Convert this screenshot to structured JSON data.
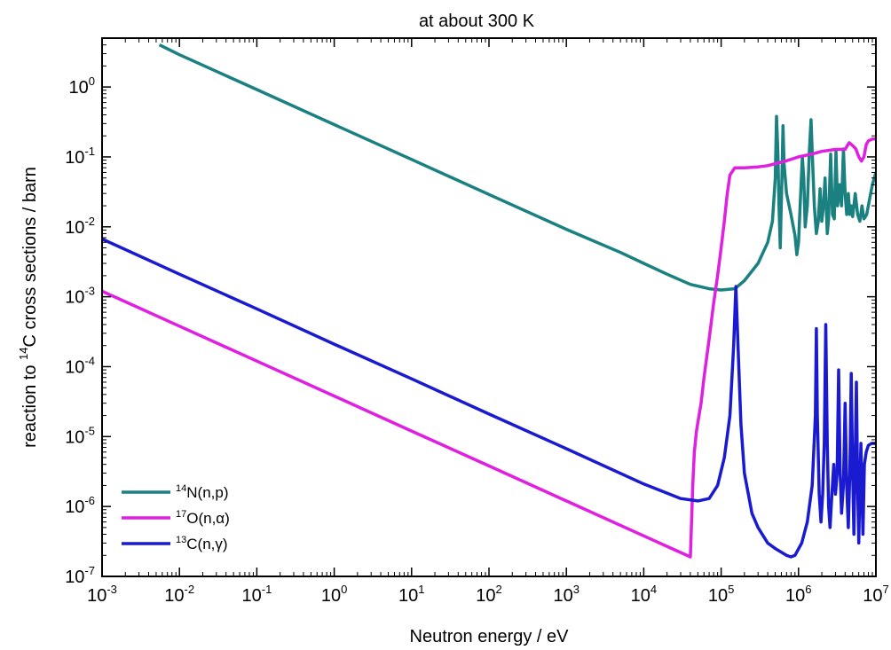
{
  "chart_data": {
    "type": "line",
    "title": "at about 300 K",
    "xlabel": "Neutron energy / eV",
    "ylabel": {
      "before": "reaction to ",
      "sup": "14",
      "after": "C cross sections / barn"
    },
    "xscale": "log",
    "yscale": "log",
    "xlim": [
      0.001,
      10000000
    ],
    "ylim": [
      1e-07,
      5
    ],
    "grid": false,
    "legend_position": "bottom-left",
    "x_ticks": [
      {
        "base": "10",
        "exp": "-3",
        "value": 0.001
      },
      {
        "base": "10",
        "exp": "-2",
        "value": 0.01
      },
      {
        "base": "10",
        "exp": "-1",
        "value": 0.1
      },
      {
        "base": "10",
        "exp": "0",
        "value": 1
      },
      {
        "base": "10",
        "exp": "1",
        "value": 10
      },
      {
        "base": "10",
        "exp": "2",
        "value": 100
      },
      {
        "base": "10",
        "exp": "3",
        "value": 1000
      },
      {
        "base": "10",
        "exp": "4",
        "value": 10000
      },
      {
        "base": "10",
        "exp": "5",
        "value": 100000
      },
      {
        "base": "10",
        "exp": "6",
        "value": 1000000
      },
      {
        "base": "10",
        "exp": "7",
        "value": 10000000
      }
    ],
    "y_ticks": [
      {
        "base": "10",
        "exp": "0",
        "value": 1
      },
      {
        "base": "10",
        "exp": "-1",
        "value": 0.1
      },
      {
        "base": "10",
        "exp": "-2",
        "value": 0.01
      },
      {
        "base": "10",
        "exp": "-3",
        "value": 0.001
      },
      {
        "base": "10",
        "exp": "-4",
        "value": 0.0001
      },
      {
        "base": "10",
        "exp": "-5",
        "value": 1e-05
      },
      {
        "base": "10",
        "exp": "-6",
        "value": 1e-06
      },
      {
        "base": "10",
        "exp": "-7",
        "value": 1e-07
      }
    ],
    "series": [
      {
        "name": "14N(n,p)",
        "label_sup": "14",
        "label_text": "N(n,p)",
        "color": "#1a8080",
        "points": [
          [
            0.0055,
            4.0
          ],
          [
            0.01,
            2.9
          ],
          [
            0.1,
            0.92
          ],
          [
            1,
            0.29
          ],
          [
            10,
            0.092
          ],
          [
            100,
            0.029
          ],
          [
            1000,
            0.0092
          ],
          [
            5000,
            0.0043
          ],
          [
            10000,
            0.003
          ],
          [
            20000,
            0.0021
          ],
          [
            40000,
            0.0015
          ],
          [
            70000,
            0.0013
          ],
          [
            100000,
            0.00125
          ],
          [
            150000,
            0.0013
          ],
          [
            200000,
            0.0017
          ],
          [
            300000,
            0.003
          ],
          [
            400000,
            0.006
          ],
          [
            460000,
            0.012
          ],
          [
            500000,
            0.05
          ],
          [
            520000,
            0.38
          ],
          [
            540000,
            0.12
          ],
          [
            560000,
            0.02
          ],
          [
            580000,
            0.005
          ],
          [
            610000,
            0.05
          ],
          [
            630000,
            0.28
          ],
          [
            650000,
            0.08
          ],
          [
            700000,
            0.03
          ],
          [
            800000,
            0.015
          ],
          [
            900000,
            0.0075
          ],
          [
            950000,
            0.004
          ],
          [
            1000000,
            0.006
          ],
          [
            1050000,
            0.02
          ],
          [
            1120000,
            0.1
          ],
          [
            1170000,
            0.05
          ],
          [
            1220000,
            0.01
          ],
          [
            1300000,
            0.02
          ],
          [
            1380000,
            0.12
          ],
          [
            1450000,
            0.34
          ],
          [
            1500000,
            0.12
          ],
          [
            1600000,
            0.02
          ],
          [
            1700000,
            0.008
          ],
          [
            1800000,
            0.012
          ],
          [
            1900000,
            0.035
          ],
          [
            2000000,
            0.012
          ],
          [
            2100000,
            0.02
          ],
          [
            2200000,
            0.05
          ],
          [
            2350000,
            0.008
          ],
          [
            2450000,
            0.013
          ],
          [
            2600000,
            0.11
          ],
          [
            2750000,
            0.015
          ],
          [
            2900000,
            0.013
          ],
          [
            3050000,
            0.12
          ],
          [
            3200000,
            0.02
          ],
          [
            3400000,
            0.04
          ],
          [
            3600000,
            0.02
          ],
          [
            3800000,
            0.13
          ],
          [
            4000000,
            0.03
          ],
          [
            4200000,
            0.015
          ],
          [
            4400000,
            0.03
          ],
          [
            4600000,
            0.015
          ],
          [
            4800000,
            0.02
          ],
          [
            5000000,
            0.014
          ],
          [
            5400000,
            0.03
          ],
          [
            5800000,
            0.015
          ],
          [
            6200000,
            0.012
          ],
          [
            6600000,
            0.02
          ],
          [
            7000000,
            0.013
          ],
          [
            7600000,
            0.015
          ],
          [
            8300000,
            0.025
          ],
          [
            9000000,
            0.04
          ],
          [
            10000000,
            0.06
          ]
        ]
      },
      {
        "name": "17O(n,α)",
        "label_sup": "17",
        "label_text": "O(n,α)",
        "color": "#e020e0",
        "points": [
          [
            0.001,
            0.0012
          ],
          [
            0.01,
            0.00038
          ],
          [
            0.1,
            0.00012
          ],
          [
            1,
            3.8e-05
          ],
          [
            10,
            1.2e-05
          ],
          [
            100,
            3.8e-06
          ],
          [
            1000,
            1.2e-06
          ],
          [
            10000,
            3.8e-07
          ],
          [
            40000,
            1.9e-07
          ],
          [
            41000,
            4e-07
          ],
          [
            43000,
            2e-06
          ],
          [
            45000,
            6e-06
          ],
          [
            48000,
            1.2e-05
          ],
          [
            50000,
            1.6e-05
          ],
          [
            55000,
            3e-05
          ],
          [
            60000,
            7e-05
          ],
          [
            70000,
            0.00025
          ],
          [
            80000,
            0.0008
          ],
          [
            90000,
            0.002
          ],
          [
            100000,
            0.005
          ],
          [
            110000,
            0.012
          ],
          [
            120000,
            0.03
          ],
          [
            130000,
            0.055
          ],
          [
            150000,
            0.07
          ],
          [
            200000,
            0.07
          ],
          [
            300000,
            0.072
          ],
          [
            400000,
            0.075
          ],
          [
            500000,
            0.08
          ],
          [
            700000,
            0.088
          ],
          [
            1000000,
            0.1
          ],
          [
            1500000,
            0.11
          ],
          [
            2000000,
            0.12
          ],
          [
            3000000,
            0.128
          ],
          [
            4000000,
            0.128
          ],
          [
            4500000,
            0.16
          ],
          [
            5000000,
            0.145
          ],
          [
            5500000,
            0.13
          ],
          [
            6000000,
            0.1
          ],
          [
            6500000,
            0.087
          ],
          [
            7000000,
            0.1
          ],
          [
            7500000,
            0.15
          ],
          [
            8000000,
            0.17
          ],
          [
            9000000,
            0.18
          ],
          [
            10000000,
            0.18
          ]
        ]
      },
      {
        "name": "13C(n,γ)",
        "label_sup": "13",
        "label_text": "C(n,γ)",
        "color": "#1a1ad0",
        "points": [
          [
            0.001,
            0.0067
          ],
          [
            0.01,
            0.0021
          ],
          [
            0.1,
            0.00067
          ],
          [
            1,
            0.00021
          ],
          [
            10,
            6.7e-05
          ],
          [
            100,
            2.1e-05
          ],
          [
            1000,
            6.7e-06
          ],
          [
            10000,
            2.1e-06
          ],
          [
            30000,
            1.3e-06
          ],
          [
            50000,
            1.2e-06
          ],
          [
            70000,
            1.3e-06
          ],
          [
            90000,
            2e-06
          ],
          [
            110000,
            5e-06
          ],
          [
            130000,
            2e-05
          ],
          [
            145000,
            0.0002
          ],
          [
            155000,
            0.0014
          ],
          [
            165000,
            0.0002
          ],
          [
            180000,
            1.5e-05
          ],
          [
            200000,
            3e-06
          ],
          [
            250000,
            8e-07
          ],
          [
            300000,
            5e-07
          ],
          [
            400000,
            3e-07
          ],
          [
            500000,
            2.5e-07
          ],
          [
            700000,
            2e-07
          ],
          [
            800000,
            1.9e-07
          ],
          [
            900000,
            2e-07
          ],
          [
            1100000,
            3e-07
          ],
          [
            1300000,
            6e-07
          ],
          [
            1500000,
            2e-06
          ],
          [
            1650000,
            2e-05
          ],
          [
            1700000,
            0.00035
          ],
          [
            1750000,
            2e-05
          ],
          [
            1850000,
            1.5e-06
          ],
          [
            1950000,
            6e-07
          ],
          [
            2050000,
            1.5e-06
          ],
          [
            2150000,
            8e-06
          ],
          [
            2250000,
            0.0004
          ],
          [
            2350000,
            8e-06
          ],
          [
            2450000,
            1e-06
          ],
          [
            2550000,
            5e-07
          ],
          [
            2700000,
            1.5e-06
          ],
          [
            2850000,
            4e-06
          ],
          [
            3000000,
            1.5e-06
          ],
          [
            3150000,
            3e-06
          ],
          [
            3300000,
            9e-05
          ],
          [
            3450000,
            3e-06
          ],
          [
            3600000,
            8e-07
          ],
          [
            3800000,
            2e-06
          ],
          [
            4000000,
            3e-05
          ],
          [
            4200000,
            2e-06
          ],
          [
            4400000,
            5e-07
          ],
          [
            4600000,
            3e-06
          ],
          [
            4800000,
            8e-05
          ],
          [
            5000000,
            3e-06
          ],
          [
            5200000,
            4e-07
          ],
          [
            5400000,
            5e-06
          ],
          [
            5600000,
            6e-05
          ],
          [
            5800000,
            2e-06
          ],
          [
            6000000,
            3e-07
          ],
          [
            6200000,
            2e-06
          ],
          [
            6400000,
            8e-06
          ],
          [
            6600000,
            1.5e-06
          ],
          [
            6800000,
            4e-07
          ],
          [
            7100000,
            4e-06
          ],
          [
            7500000,
            6e-06
          ],
          [
            8000000,
            7.5e-06
          ],
          [
            8800000,
            8e-06
          ],
          [
            10000000,
            8e-06
          ]
        ]
      }
    ]
  }
}
